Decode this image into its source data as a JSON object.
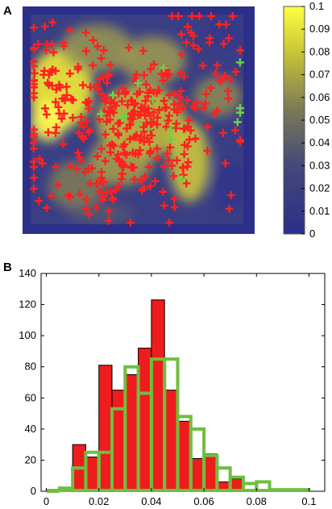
{
  "panels": {
    "a_label": "A",
    "b_label": "B"
  },
  "colors": {
    "map_low": "#2b2f88",
    "map_high": "#ffff40",
    "red_marker": "#ff2020",
    "green_marker": "#6fcf4a",
    "red_bar_fill": "#ee1c1c",
    "green_outline": "#6fbf3f"
  },
  "chart_data": [
    {
      "type": "heatmap",
      "panel": "A",
      "colorbar": {
        "range": [
          0,
          0.1
        ],
        "ticks": [
          "0.1",
          "0.09",
          "0.08",
          "0.07",
          "0.06",
          "0.05",
          "0.04",
          "0.03",
          "0.02",
          "0.01",
          "0"
        ],
        "tick_values": [
          0.1,
          0.09,
          0.08,
          0.07,
          0.06,
          0.05,
          0.04,
          0.03,
          0.02,
          0.01,
          0
        ],
        "colormap": "dark blue to yellow"
      },
      "markers": [
        {
          "series": "red",
          "marker": "+",
          "count": 380
        },
        {
          "series": "green",
          "marker": "+",
          "count": 16
        }
      ],
      "hotspots_description": "yellow regions concentrated in upper-left, center and lower-center; blue border frame"
    },
    {
      "type": "bar",
      "panel": "B",
      "x_ticks": [
        "0",
        "0.02",
        "0.04",
        "0.06",
        "0.08",
        "0.1"
      ],
      "x_tick_values": [
        0,
        0.02,
        0.04,
        0.06,
        0.08,
        0.1
      ],
      "y_ticks": [
        "0",
        "20",
        "40",
        "60",
        "80",
        "100",
        "120",
        "140"
      ],
      "y_tick_values": [
        0,
        20,
        40,
        60,
        80,
        100,
        120,
        140
      ],
      "xlim": [
        -0.002,
        0.106
      ],
      "ylim": [
        0,
        140
      ],
      "bin_width": 0.005,
      "series": [
        {
          "style": "filled",
          "bins": [
            {
              "x": 0.0125,
              "y": 30
            },
            {
              "x": 0.0175,
              "y": 22
            },
            {
              "x": 0.0225,
              "y": 81
            },
            {
              "x": 0.0275,
              "y": 65
            },
            {
              "x": 0.0325,
              "y": 75
            },
            {
              "x": 0.0375,
              "y": 92
            },
            {
              "x": 0.0425,
              "y": 123
            },
            {
              "x": 0.0475,
              "y": 65
            },
            {
              "x": 0.0525,
              "y": 45
            },
            {
              "x": 0.0575,
              "y": 21
            },
            {
              "x": 0.0625,
              "y": 24
            },
            {
              "x": 0.0675,
              "y": 6
            },
            {
              "x": 0.0725,
              "y": 8
            }
          ]
        },
        {
          "style": "outline",
          "bins": [
            {
              "x": 0.0025,
              "y": 0
            },
            {
              "x": 0.0075,
              "y": 2
            },
            {
              "x": 0.0125,
              "y": 15
            },
            {
              "x": 0.0175,
              "y": 25
            },
            {
              "x": 0.0225,
              "y": 25
            },
            {
              "x": 0.0275,
              "y": 53
            },
            {
              "x": 0.0325,
              "y": 80
            },
            {
              "x": 0.0375,
              "y": 63
            },
            {
              "x": 0.0425,
              "y": 85
            },
            {
              "x": 0.0475,
              "y": 85
            },
            {
              "x": 0.0525,
              "y": 48
            },
            {
              "x": 0.0575,
              "y": 40
            },
            {
              "x": 0.0625,
              "y": 23
            },
            {
              "x": 0.0675,
              "y": 15
            },
            {
              "x": 0.0725,
              "y": 9
            },
            {
              "x": 0.0775,
              "y": 5
            },
            {
              "x": 0.0825,
              "y": 6
            },
            {
              "x": 0.0875,
              "y": 1
            },
            {
              "x": 0.0925,
              "y": 1
            },
            {
              "x": 0.0975,
              "y": 1
            }
          ]
        }
      ]
    }
  ]
}
